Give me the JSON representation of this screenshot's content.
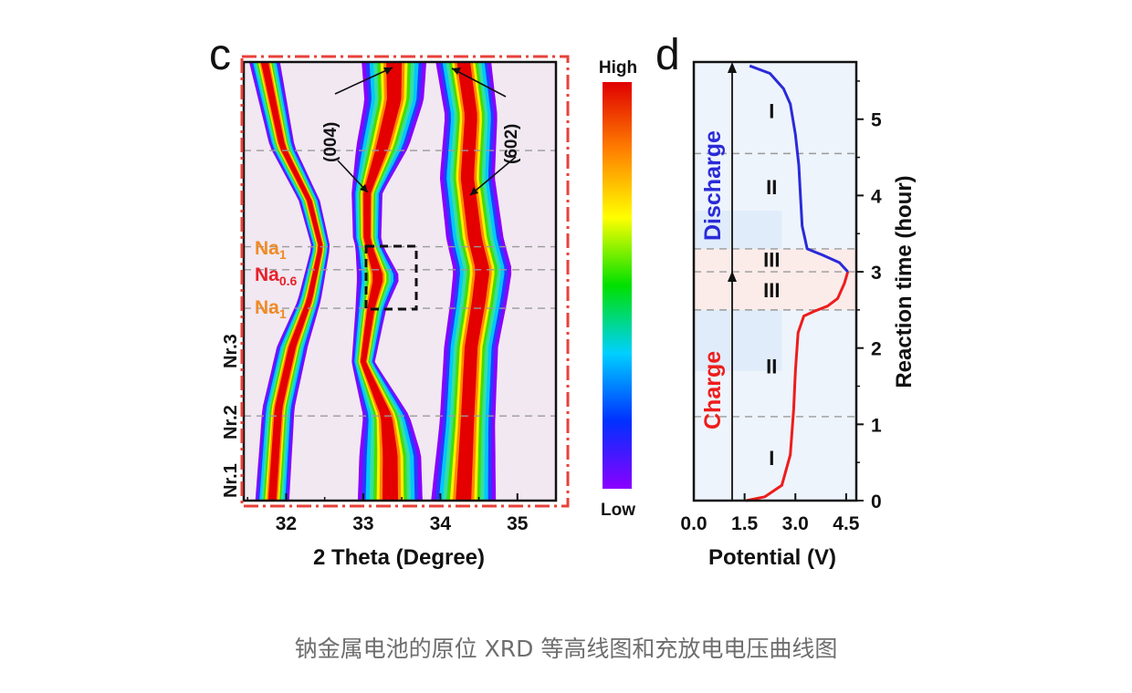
{
  "caption": "钠金属电池的原位 XRD 等高线图和充放电电压曲线图",
  "chart_data": [
    {
      "type": "heatmap",
      "panel_label": "c",
      "xlabel": "2 Theta (Degree)",
      "xlim": [
        31.45,
        35.5
      ],
      "xticks": [
        "32",
        "33",
        "34",
        "35"
      ],
      "ylim": [
        0,
        5.7
      ],
      "colorbar": {
        "high_label": "High",
        "low_label": "Low",
        "colors": [
          "#8a00ff",
          "#0030ff",
          "#00d0ff",
          "#00e000",
          "#ffff00",
          "#ff8000",
          "#e00000"
        ]
      },
      "background": "#f1e8f2",
      "peaks": [
        {
          "name": "left",
          "center": [
            [
              0,
              31.82
            ],
            [
              1.2,
              31.9
            ],
            [
              2,
              32.08
            ],
            [
              2.6,
              32.3
            ],
            [
              3.3,
              32.45
            ],
            [
              3.9,
              32.3
            ],
            [
              4.6,
              31.95
            ],
            [
              5.7,
              31.72
            ]
          ]
        },
        {
          "name": "(004)",
          "center": [
            [
              0,
              33.35
            ],
            [
              0.6,
              33.35
            ],
            [
              1.1,
              33.3
            ],
            [
              1.8,
              33.0
            ],
            [
              2.5,
              33.1
            ],
            [
              2.9,
              33.2
            ],
            [
              3.4,
              33.05
            ],
            [
              4.0,
              33.05
            ],
            [
              4.6,
              33.25
            ],
            [
              5.2,
              33.4
            ],
            [
              5.7,
              33.4
            ]
          ]
        },
        {
          "name": "(602)",
          "center": [
            [
              0,
              34.3
            ],
            [
              1,
              34.35
            ],
            [
              2,
              34.4
            ],
            [
              2.6,
              34.5
            ],
            [
              3.0,
              34.55
            ],
            [
              3.4,
              34.45
            ],
            [
              4.2,
              34.35
            ],
            [
              5.0,
              34.4
            ],
            [
              5.7,
              34.3
            ]
          ]
        }
      ],
      "annotations": {
        "p004": "(004)",
        "p602": "(602)"
      },
      "phase_labels": {
        "na1_top": "Na",
        "na1_top_sub": "1",
        "na06": "Na",
        "na06_sub": "0.6",
        "na1_bot": "Na",
        "na1_bot_sub": "1"
      },
      "rows": {
        "nr1": "Nr.1",
        "nr2": "Nr.2",
        "nr3": "Nr.3"
      },
      "dashed_times": [
        1.1,
        2.5,
        3.0,
        3.3,
        4.55
      ],
      "box_time_range": [
        2.5,
        3.3
      ]
    },
    {
      "type": "line",
      "panel_label": "d",
      "xlabel": "Potential (V)",
      "ylabel": "Reaction time (hour)",
      "xlim": [
        0,
        4.8
      ],
      "ylim": [
        0,
        5.75
      ],
      "xticks": [
        "0.0",
        "1.5",
        "3.0",
        "4.5"
      ],
      "yticks": [
        "0",
        "1",
        "2",
        "3",
        "4",
        "5"
      ],
      "dashed_times": [
        1.1,
        2.5,
        3.0,
        3.3,
        4.55
      ],
      "series": [
        {
          "name": "Charge",
          "color": "#ee1c1c",
          "x": [
            1.55,
            2.1,
            2.6,
            2.85,
            2.95,
            3.0,
            3.08,
            3.25,
            3.55,
            3.95,
            4.25,
            4.45,
            4.55
          ],
          "y": [
            0.0,
            0.05,
            0.2,
            0.6,
            1.2,
            1.7,
            2.2,
            2.42,
            2.48,
            2.55,
            2.65,
            2.85,
            3.0
          ]
        },
        {
          "name": "Discharge",
          "color": "#2a2ad8",
          "x": [
            4.55,
            4.3,
            3.8,
            3.35,
            3.2,
            3.15,
            3.1,
            3.0,
            2.85,
            2.65,
            2.25,
            1.65
          ],
          "y": [
            3.0,
            3.12,
            3.22,
            3.3,
            3.6,
            4.0,
            4.4,
            4.8,
            5.2,
            5.4,
            5.6,
            5.7
          ]
        }
      ],
      "stage_marks": [
        {
          "label": "I",
          "y": 0.55
        },
        {
          "label": "II",
          "y": 1.75
        },
        {
          "label": "III",
          "y": 2.75
        },
        {
          "label": "III",
          "y": 3.15
        },
        {
          "label": "II",
          "y": 4.1
        },
        {
          "label": "I",
          "y": 5.1
        }
      ]
    }
  ]
}
